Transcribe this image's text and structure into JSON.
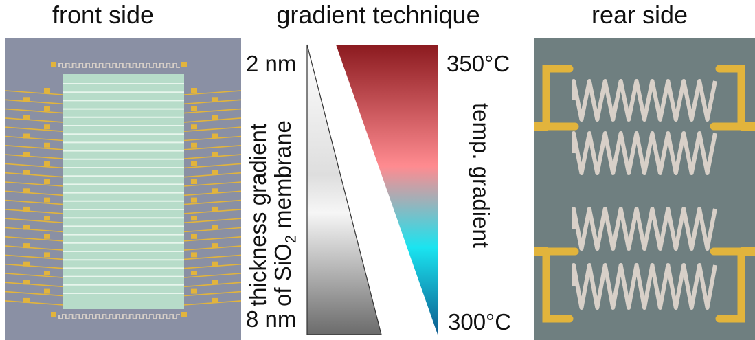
{
  "titles": {
    "front": "front side",
    "center": "gradient technique",
    "rear": "rear side"
  },
  "thickness": {
    "top": "2 nm",
    "bottom": "8 nm",
    "axis_line1": "thickness gradient",
    "axis_line2_prefix": "of SiO",
    "axis_line2_sub": "2",
    "axis_line2_suffix": " membrane"
  },
  "temperature": {
    "top": "350°C",
    "bottom": "300°C",
    "axis": "temp. gradient"
  },
  "colors": {
    "chip_background": "#8a90a4",
    "rear_background": "#6f7f80",
    "membrane": "#b7dcc9",
    "gold_pad": "#e2b43c",
    "meander": "#d8d0c8",
    "heat_hot": "#8b1a1f",
    "heat_mid": "#ff8b90",
    "heat_cyan": "#1ae4f0",
    "heat_cool": "#0d5b8e"
  }
}
